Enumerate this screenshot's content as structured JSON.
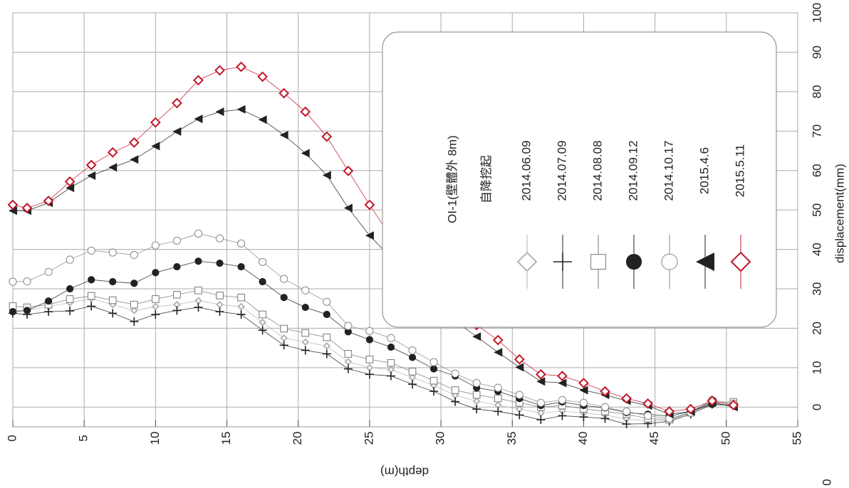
{
  "chart_data": {
    "type": "line",
    "title": "OI-1(壁體外 8m)",
    "subtitle": "自降挖起",
    "x_label": "depth(m)",
    "y_label": "displacement(mm)",
    "annotation": "0",
    "x": [
      0,
      1,
      2.5,
      4,
      5.5,
      7,
      8.5,
      10,
      11.5,
      13,
      14.5,
      16,
      17.5,
      19,
      20.5,
      22,
      23.5,
      25,
      26.5,
      28,
      29.5,
      31,
      32.5,
      34,
      35.5,
      37,
      38.5,
      40,
      41.5,
      43,
      44.5,
      46,
      47.5,
      49,
      50.5
    ],
    "xlim": [
      0,
      55
    ],
    "xticks": [
      0,
      5,
      10,
      15,
      20,
      25,
      30,
      35,
      40,
      45,
      50,
      55
    ],
    "ylim": [
      -5,
      100
    ],
    "yticks": [
      0,
      10,
      20,
      30,
      40,
      50,
      60,
      70,
      80,
      90,
      100
    ],
    "grid": true,
    "series": [
      {
        "name": "2014.06.09",
        "color": "#b5b5b5",
        "marker": "diamond-open",
        "values": [
          24.5,
          24.5,
          25.5,
          26.5,
          27.5,
          26,
          24.5,
          25.5,
          26,
          27,
          26,
          25.5,
          21.5,
          17.5,
          16.5,
          15.5,
          11.5,
          10,
          9.5,
          7.5,
          5.5,
          3,
          1.5,
          0.5,
          -0.5,
          -1.5,
          -1,
          -1.5,
          -2,
          -3,
          -3.5,
          -3.5,
          -1.5,
          1,
          0.5
        ]
      },
      {
        "name": "2014.07.09",
        "color": "#222222",
        "marker": "plus",
        "values": [
          23.8,
          23.5,
          24.2,
          24.4,
          25.6,
          23.8,
          21.7,
          23.5,
          24.5,
          25.3,
          24.2,
          23.5,
          19.5,
          15.7,
          14.4,
          13.5,
          9.7,
          8.3,
          7.9,
          5.8,
          4.0,
          1.4,
          -0.5,
          -1.1,
          -2.0,
          -3.2,
          -2.2,
          -2.5,
          -2.9,
          -4.3,
          -4.2,
          -3.6,
          -1.8,
          0.7,
          0.4
        ]
      },
      {
        "name": "2014.08.08",
        "color": "#777777",
        "marker": "square-open",
        "values": [
          25.6,
          25.3,
          26.0,
          27.4,
          28.2,
          27.1,
          26.0,
          27.4,
          28.5,
          29.6,
          28.3,
          27.8,
          23.5,
          19.9,
          18.8,
          17.7,
          13.5,
          12.1,
          11.2,
          9.0,
          6.7,
          4.3,
          3.1,
          2.2,
          1.1,
          0,
          0.4,
          -0.4,
          -1.1,
          -1.8,
          -2.9,
          -3.2,
          -1.4,
          1.1,
          1.3
        ]
      },
      {
        "name": "2014.09.12",
        "color": "#222222",
        "marker": "circle-filled",
        "values": [
          24.2,
          24.5,
          26.9,
          30.0,
          32.3,
          31.8,
          31.4,
          34.1,
          35.6,
          37.0,
          36.5,
          35.6,
          31.8,
          27.8,
          25.3,
          23.5,
          19.1,
          17.1,
          15.2,
          12.6,
          9.7,
          7.9,
          4.9,
          4.0,
          2.2,
          0.4,
          1.3,
          0.4,
          -0.2,
          -1.4,
          -1.8,
          -2.3,
          -1.1,
          0.7,
          0.4
        ]
      },
      {
        "name": "2014.10.17",
        "color": "#888888",
        "marker": "circle-open",
        "values": [
          31.8,
          31.9,
          34.3,
          37.4,
          39.7,
          39.2,
          38.6,
          41.0,
          42.2,
          44.0,
          42.8,
          41.5,
          36.8,
          32.5,
          29.6,
          26.7,
          20.6,
          19.3,
          17.5,
          14.4,
          11.4,
          8.5,
          6.1,
          4.9,
          3.1,
          1.1,
          1.8,
          1.1,
          0,
          -1.1,
          -2.2,
          -2.9,
          -1.4,
          1.8,
          0.9
        ]
      },
      {
        "name": "2015.4.6",
        "color": "#222222",
        "marker": "triangle",
        "values": [
          49.8,
          49.8,
          51.8,
          55.6,
          58.7,
          60.8,
          62.8,
          66.2,
          69.9,
          73.1,
          74.9,
          75.5,
          72.9,
          69.0,
          64.4,
          58.8,
          50.5,
          43.5,
          37.9,
          31.6,
          26.9,
          21.8,
          17.9,
          13.9,
          10.1,
          6.5,
          6.1,
          4.3,
          3.1,
          1.6,
          0.4,
          -1.8,
          -1.1,
          1.3,
          0
        ]
      },
      {
        "name": "2015.5.11",
        "color": "#c0182a",
        "marker": "diamond-open",
        "values": [
          51.3,
          50.5,
          52.3,
          57.2,
          61.4,
          64.6,
          67.1,
          72.2,
          77.1,
          82.9,
          85.4,
          86.3,
          83.8,
          79.6,
          74.9,
          68.6,
          59.9,
          51.3,
          43.1,
          36.5,
          31.0,
          25.6,
          20.8,
          17.0,
          12.1,
          8.3,
          7.9,
          6.1,
          4.0,
          2.2,
          0.9,
          -1.1,
          -0.5,
          1.6,
          0.5
        ]
      }
    ]
  }
}
